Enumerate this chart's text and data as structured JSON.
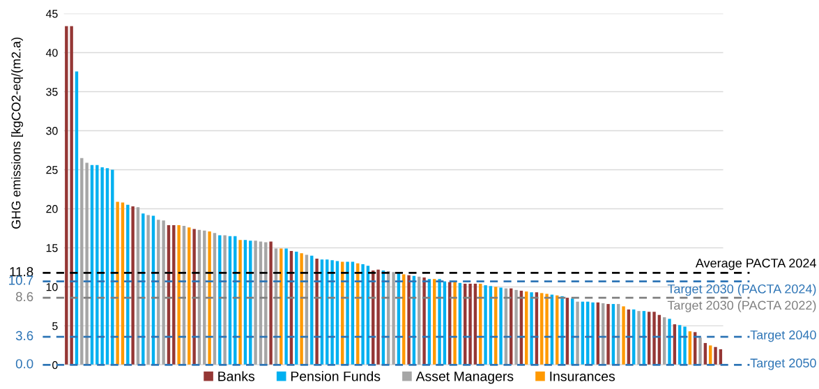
{
  "chart_data": {
    "type": "bar",
    "ylabel": "GHG emissions [kgCO2-eq/(m2.a)",
    "categories": [
      null,
      null,
      null,
      null,
      null,
      null,
      null,
      null,
      null,
      null,
      null,
      null,
      null,
      null,
      null,
      null,
      null,
      null,
      null,
      null,
      null,
      null,
      null,
      null,
      null,
      null,
      null,
      null,
      null,
      null,
      null,
      null,
      null,
      null,
      null,
      null,
      null,
      null,
      null,
      null,
      null,
      null,
      null,
      null,
      null,
      null,
      null,
      null,
      null,
      null,
      null,
      null,
      null,
      null,
      null,
      null,
      null,
      null,
      null,
      null,
      null,
      null,
      null,
      null,
      null,
      null,
      null,
      null,
      null,
      null,
      null,
      null,
      null,
      null,
      null,
      null,
      null,
      null,
      null,
      null,
      null,
      null,
      null,
      null,
      null,
      null,
      null,
      null,
      null,
      null,
      null,
      null,
      null,
      null,
      null,
      null,
      null,
      null,
      null,
      null,
      null,
      null,
      null,
      null,
      null,
      null,
      null,
      null,
      null,
      null,
      null,
      null,
      null,
      null,
      null,
      null,
      null,
      null,
      null,
      null,
      null,
      null,
      null,
      null,
      null,
      null,
      null,
      null,
      null
    ],
    "series": [
      {
        "name": "Banks",
        "color": "#953735",
        "values": [
          43.4,
          43.4,
          null,
          null,
          null,
          null,
          null,
          null,
          null,
          null,
          null,
          null,
          null,
          20.3,
          null,
          null,
          null,
          null,
          null,
          null,
          17.9,
          17.9,
          null,
          null,
          null,
          17.4,
          null,
          null,
          null,
          null,
          null,
          null,
          null,
          null,
          null,
          null,
          null,
          null,
          null,
          null,
          15.8,
          null,
          null,
          null,
          14.6,
          null,
          null,
          null,
          null,
          13.6,
          null,
          null,
          null,
          null,
          null,
          null,
          null,
          null,
          null,
          null,
          12.1,
          12.2,
          null,
          null,
          null,
          null,
          null,
          11.5,
          null,
          null,
          11.2,
          null,
          null,
          null,
          null,
          10.6,
          null,
          null,
          10.4,
          10.4,
          10.4,
          null,
          null,
          null,
          null,
          null,
          null,
          9.8,
          null,
          9.5,
          null,
          null,
          9.3,
          null,
          null,
          null,
          null,
          null,
          8.6,
          null,
          null,
          null,
          null,
          null,
          8.0,
          null,
          7.8,
          null,
          null,
          null,
          7.1,
          null,
          null,
          null,
          6.8,
          6.8,
          6.4,
          null,
          null,
          5.2,
          null,
          null,
          null,
          4.2,
          null,
          2.8,
          null,
          2.3,
          2.0
        ]
      },
      {
        "name": "Pension Funds",
        "color": "#00b0f0",
        "values": [
          null,
          null,
          37.6,
          null,
          null,
          25.6,
          25.6,
          25.3,
          25.2,
          25.0,
          null,
          null,
          20.5,
          null,
          null,
          19.4,
          null,
          19.1,
          null,
          null,
          null,
          null,
          null,
          null,
          null,
          null,
          null,
          null,
          null,
          null,
          16.6,
          null,
          16.5,
          16.5,
          null,
          16.0,
          15.9,
          null,
          null,
          null,
          null,
          null,
          null,
          14.9,
          null,
          14.5,
          null,
          null,
          14.0,
          null,
          13.5,
          13.5,
          13.4,
          13.3,
          null,
          13.2,
          13.2,
          null,
          12.9,
          12.7,
          null,
          null,
          12.1,
          null,
          null,
          11.8,
          null,
          null,
          11.4,
          null,
          null,
          11.0,
          null,
          11.0,
          10.7,
          null,
          null,
          10.5,
          null,
          null,
          null,
          null,
          10.2,
          10.1,
          null,
          9.9,
          null,
          null,
          null,
          null,
          null,
          9.3,
          null,
          null,
          null,
          9.0,
          null,
          8.8,
          null,
          8.5,
          null,
          8.1,
          8.1,
          8.0,
          null,
          null,
          null,
          7.8,
          null,
          null,
          null,
          7.1,
          null,
          6.9,
          null,
          null,
          null,
          null,
          5.9,
          null,
          5.1,
          4.9,
          null,
          null,
          null,
          null,
          null,
          null,
          null
        ]
      },
      {
        "name": "Asset Managers",
        "color": "#a6a6a6",
        "values": [
          null,
          null,
          null,
          26.5,
          25.9,
          null,
          null,
          null,
          null,
          null,
          null,
          null,
          null,
          null,
          20.2,
          null,
          19.2,
          null,
          18.6,
          18.5,
          null,
          null,
          null,
          17.8,
          null,
          null,
          17.3,
          17.2,
          null,
          16.9,
          null,
          16.6,
          null,
          null,
          null,
          null,
          null,
          15.9,
          15.8,
          15.7,
          null,
          14.9,
          null,
          null,
          null,
          null,
          null,
          14.1,
          null,
          null,
          null,
          null,
          null,
          null,
          null,
          null,
          null,
          null,
          null,
          null,
          null,
          null,
          null,
          12.0,
          11.9,
          null,
          null,
          null,
          null,
          11.3,
          null,
          null,
          null,
          null,
          null,
          null,
          null,
          null,
          null,
          null,
          null,
          null,
          null,
          null,
          null,
          null,
          9.8,
          null,
          9.6,
          null,
          null,
          null,
          null,
          null,
          null,
          null,
          null,
          null,
          null,
          null,
          8.1,
          null,
          null,
          null,
          null,
          7.9,
          null,
          null,
          7.8,
          null,
          null,
          null,
          6.9,
          null,
          null,
          null,
          null,
          6.1,
          null,
          null,
          null,
          null,
          null,
          null,
          3.5,
          null,
          null,
          null,
          null
        ]
      },
      {
        "name": "Insurances",
        "color": "#ff9900",
        "values": [
          null,
          null,
          null,
          null,
          null,
          null,
          null,
          null,
          null,
          null,
          20.9,
          20.8,
          null,
          null,
          null,
          null,
          null,
          null,
          null,
          null,
          null,
          null,
          17.9,
          null,
          17.6,
          null,
          null,
          null,
          17.1,
          null,
          null,
          null,
          null,
          null,
          16.0,
          null,
          null,
          null,
          null,
          null,
          null,
          null,
          14.9,
          null,
          null,
          null,
          14.3,
          null,
          null,
          null,
          null,
          null,
          null,
          null,
          13.2,
          null,
          null,
          13.0,
          null,
          null,
          null,
          null,
          null,
          null,
          null,
          null,
          11.6,
          null,
          null,
          null,
          null,
          null,
          11.0,
          null,
          null,
          null,
          10.6,
          null,
          null,
          null,
          null,
          10.4,
          null,
          null,
          10.0,
          null,
          null,
          null,
          null,
          null,
          9.4,
          null,
          null,
          9.2,
          9.1,
          null,
          8.9,
          null,
          null,
          null,
          null,
          null,
          null,
          null,
          null,
          null,
          null,
          null,
          null,
          7.5,
          null,
          null,
          null,
          null,
          null,
          null,
          null,
          null,
          null,
          null,
          null,
          null,
          4.3,
          null,
          null,
          null,
          2.5,
          null,
          null
        ]
      }
    ],
    "ylim": [
      0,
      45
    ],
    "yticks": [
      0,
      5,
      10,
      15,
      20,
      25,
      30,
      35,
      40,
      45
    ],
    "grid": "y",
    "legend": "bottom",
    "tick_labels": "y",
    "ref_lines": [
      {
        "axis": "y",
        "value": 11.8,
        "label": "Average PACTA 2024",
        "color": "#000000",
        "line_style": "dashed"
      },
      {
        "axis": "y",
        "value": 10.7,
        "label": "Target 2030 (PACTA 2024)",
        "color": "#2e75b6",
        "line_style": "dashed"
      },
      {
        "axis": "y",
        "value": 8.6,
        "label": "Target 2030 (PACTA 2022)",
        "color": "#808080",
        "line_style": "dashed"
      },
      {
        "axis": "y",
        "value": 3.6,
        "label": "Target 2040",
        "color": "#2e75b6",
        "line_style": "dashed"
      },
      {
        "axis": "y",
        "value": 0.0,
        "label": "Target 2050",
        "color": "#2e75b6",
        "line_style": "dashed"
      }
    ],
    "annotations": [
      "11.8",
      "10.7",
      "8.6",
      "3.6",
      "0.0"
    ]
  }
}
